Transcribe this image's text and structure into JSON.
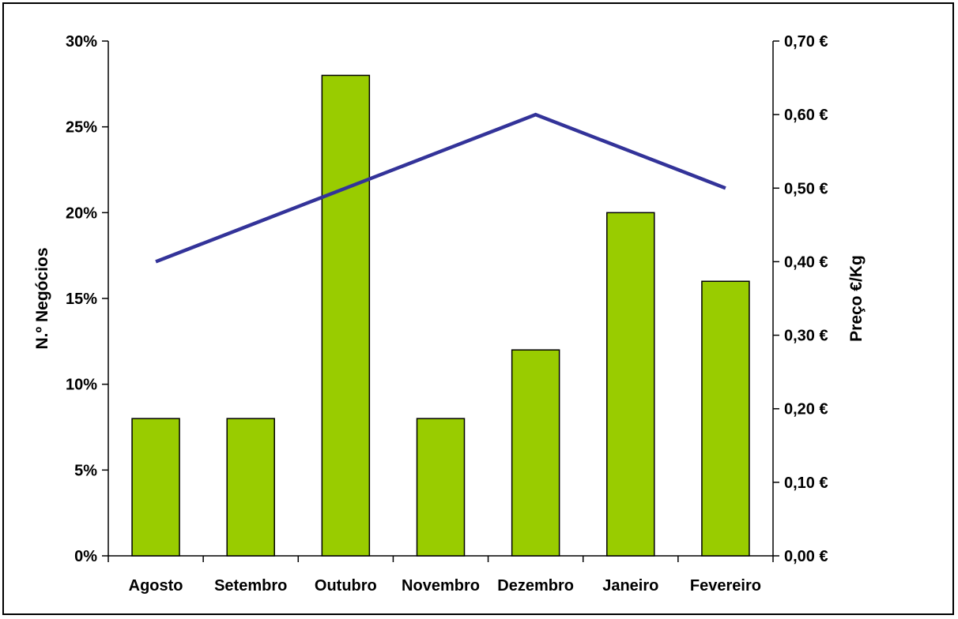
{
  "chart_data": {
    "type": "bar",
    "categories": [
      "Agosto",
      "Setembro",
      "Outubro",
      "Novembro",
      "Dezembro",
      "Janeiro",
      "Fevereiro"
    ],
    "series": [
      {
        "type": "bar",
        "axis": "left",
        "color": "#99cc00",
        "values": [
          8,
          8,
          28,
          8,
          12,
          20,
          16
        ]
      },
      {
        "type": "line",
        "axis": "right",
        "color": "#333399",
        "values": [
          0.4,
          0.45,
          0.5,
          0.55,
          0.6,
          0.55,
          0.5
        ]
      }
    ],
    "y_left": {
      "label": "N.º  Negócios",
      "min": 0,
      "max": 30,
      "step": 5,
      "tick_labels": [
        "0%",
        "5%",
        "10%",
        "15%",
        "20%",
        "25%",
        "30%"
      ]
    },
    "y_right": {
      "label": "Preço €/Kg",
      "min": 0,
      "max": 0.7,
      "step": 0.1,
      "tick_labels": [
        "0,00 €",
        "0,10 €",
        "0,20 €",
        "0,30 €",
        "0,40 €",
        "0,50 €",
        "0,60 €",
        "0,70 €"
      ]
    },
    "xlabel": "",
    "title": "",
    "grid": false,
    "legend": "none"
  }
}
